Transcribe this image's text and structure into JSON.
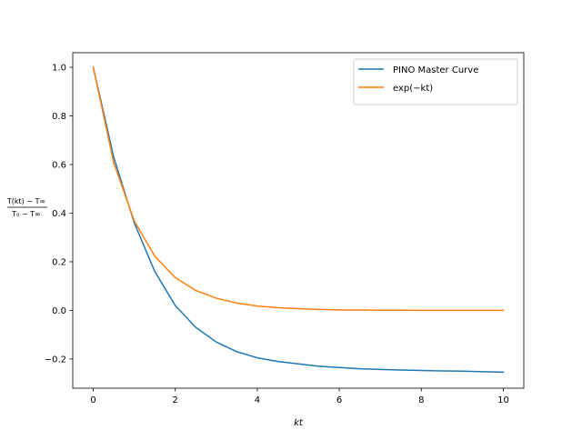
{
  "chart_data": {
    "type": "line",
    "title": "",
    "xlabel": "kt",
    "ylabel": {
      "numerator": "T(kt) − T∞",
      "denominator": "T₀ − T∞"
    },
    "xlim": [
      -0.5,
      10.5
    ],
    "ylim": [
      -0.32,
      1.06
    ],
    "xticks": [
      0,
      2,
      4,
      6,
      8,
      10
    ],
    "xtick_labels": [
      "0",
      "2",
      "4",
      "6",
      "8",
      "10"
    ],
    "yticks": [
      -0.2,
      0.0,
      0.2,
      0.4,
      0.6,
      0.8,
      1.0
    ],
    "ytick_labels": [
      "−0.2",
      "0.0",
      "0.2",
      "0.4",
      "0.6",
      "0.8",
      "1.0"
    ],
    "grid": false,
    "legend": "top-right",
    "x": [
      0,
      0.5,
      1,
      1.5,
      2,
      2.5,
      3,
      3.5,
      4,
      4.5,
      5,
      5.5,
      6,
      6.5,
      7,
      7.5,
      8,
      8.5,
      9,
      9.5,
      10
    ],
    "series": [
      {
        "name": "PINO Master Curve",
        "color": "#1f77b4",
        "values": [
          1.0,
          0.63,
          0.36,
          0.16,
          0.02,
          -0.07,
          -0.13,
          -0.17,
          -0.195,
          -0.21,
          -0.22,
          -0.23,
          -0.235,
          -0.24,
          -0.243,
          -0.245,
          -0.247,
          -0.249,
          -0.25,
          -0.252,
          -0.254
        ]
      },
      {
        "name": "exp(−kt)",
        "color": "#ff7f0e",
        "values": [
          1.0,
          0.607,
          0.368,
          0.223,
          0.135,
          0.082,
          0.05,
          0.03,
          0.018,
          0.011,
          0.007,
          0.004,
          0.002,
          0.0015,
          0.0009,
          0.0006,
          0.0003,
          0.0002,
          0.0001,
          0.0001,
          0.0
        ]
      }
    ]
  }
}
